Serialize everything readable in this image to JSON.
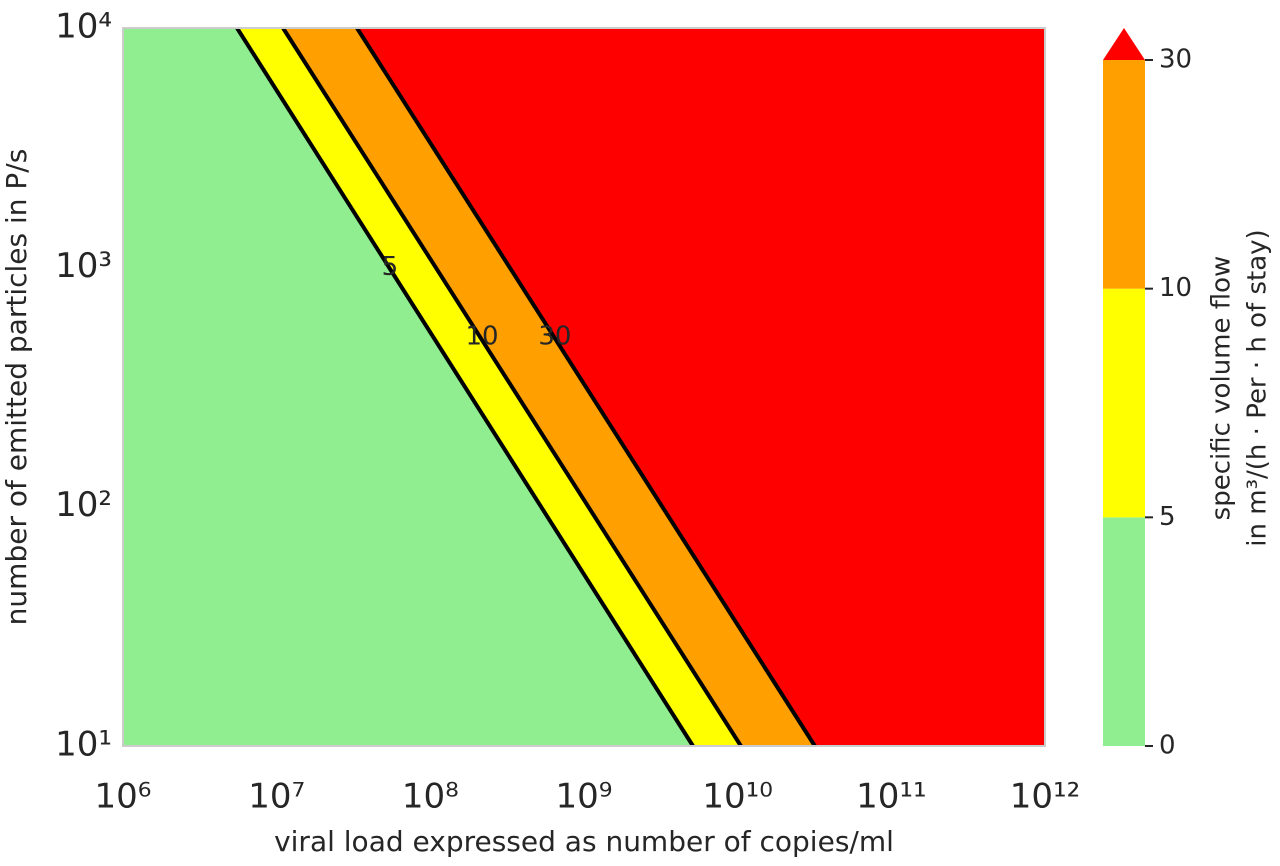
{
  "chart_data": {
    "type": "contour",
    "xlabel": "viral load expressed as number of copies/ml",
    "ylabel": "number of emitted particles in P/s",
    "xscale": "log",
    "yscale": "log",
    "xlim": [
      1000000,
      1000000000000
    ],
    "ylim": [
      10,
      10000
    ],
    "xticks": [
      {
        "value": 1000000,
        "label": "10⁶"
      },
      {
        "value": 10000000,
        "label": "10⁷"
      },
      {
        "value": 100000000,
        "label": "10⁸"
      },
      {
        "value": 1000000000,
        "label": "10⁹"
      },
      {
        "value": 10000000000,
        "label": "10¹⁰"
      },
      {
        "value": 100000000000,
        "label": "10¹¹"
      },
      {
        "value": 1000000000000,
        "label": "10¹²"
      }
    ],
    "yticks": [
      {
        "value": 10,
        "label": "10¹"
      },
      {
        "value": 100,
        "label": "10²"
      },
      {
        "value": 1000,
        "label": "10³"
      },
      {
        "value": 10000,
        "label": "10⁴"
      }
    ],
    "levels": [
      0,
      5,
      10,
      30
    ],
    "level_colors": [
      "#90ee90",
      "#ffff00",
      "#ffa000",
      "#ff0000"
    ],
    "extend": "max",
    "contours": [
      {
        "level": 5,
        "x": [
          5520000,
          5120000000
        ],
        "y": [
          10000,
          10
        ],
        "label_x": 54600000,
        "label_y": 1000
      },
      {
        "level": 10,
        "x": [
          11000000,
          10500000000
        ],
        "y": [
          10000,
          10
        ],
        "label_x": 217000000,
        "label_y": 512
      },
      {
        "level": 30,
        "x": [
          33300000,
          31800000000
        ],
        "y": [
          10000,
          10
        ],
        "label_x": 647000000,
        "label_y": 512
      }
    ],
    "colorbar_label": [
      "specific volume flow",
      "in m³/(h · Per · h of stay)"
    ]
  }
}
